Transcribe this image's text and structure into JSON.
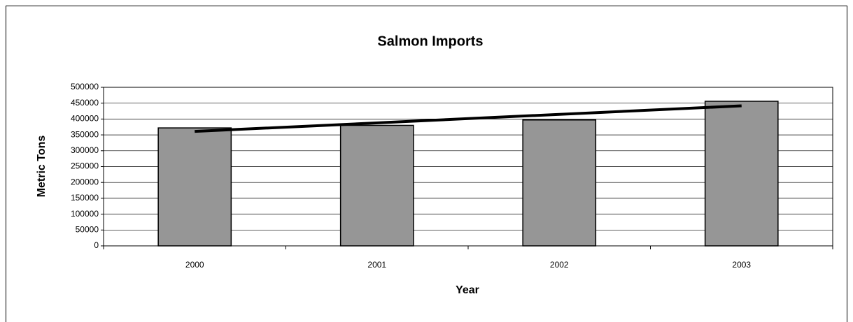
{
  "chart_data": {
    "type": "bar",
    "title": "Salmon Imports",
    "x_label": "Year",
    "y_label": "Metric Tons",
    "categories": [
      "2000",
      "2001",
      "2002",
      "2003"
    ],
    "values": [
      372000,
      380000,
      397000,
      456000
    ],
    "color": "#969696",
    "trendline": true,
    "ylim": [
      0,
      500000
    ],
    "yticks": [
      0,
      50000,
      100000,
      150000,
      200000,
      250000,
      300000,
      350000,
      400000,
      450000,
      500000
    ],
    "grid": true
  }
}
